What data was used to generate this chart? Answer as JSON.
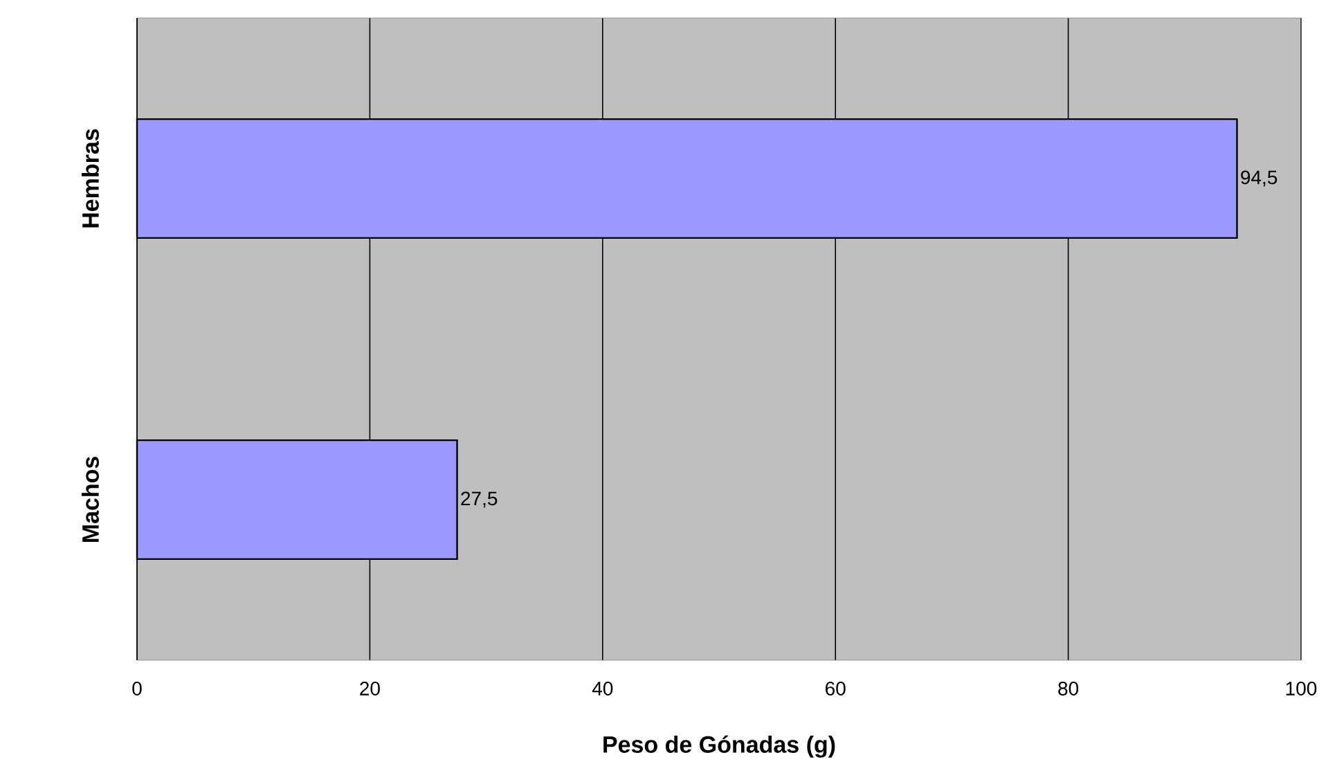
{
  "chart_data": {
    "type": "bar",
    "orientation": "horizontal",
    "categories": [
      "Hembras",
      "Machos"
    ],
    "values": [
      94.5,
      27.5
    ],
    "color": "#9999ff",
    "value_labels": [
      "94,5",
      "27,5"
    ],
    "xlim": [
      0,
      100
    ],
    "xticks": [
      0,
      20,
      40,
      60,
      80,
      100
    ],
    "xlabel": "Peso de Gónadas (g)",
    "grid": "x"
  }
}
